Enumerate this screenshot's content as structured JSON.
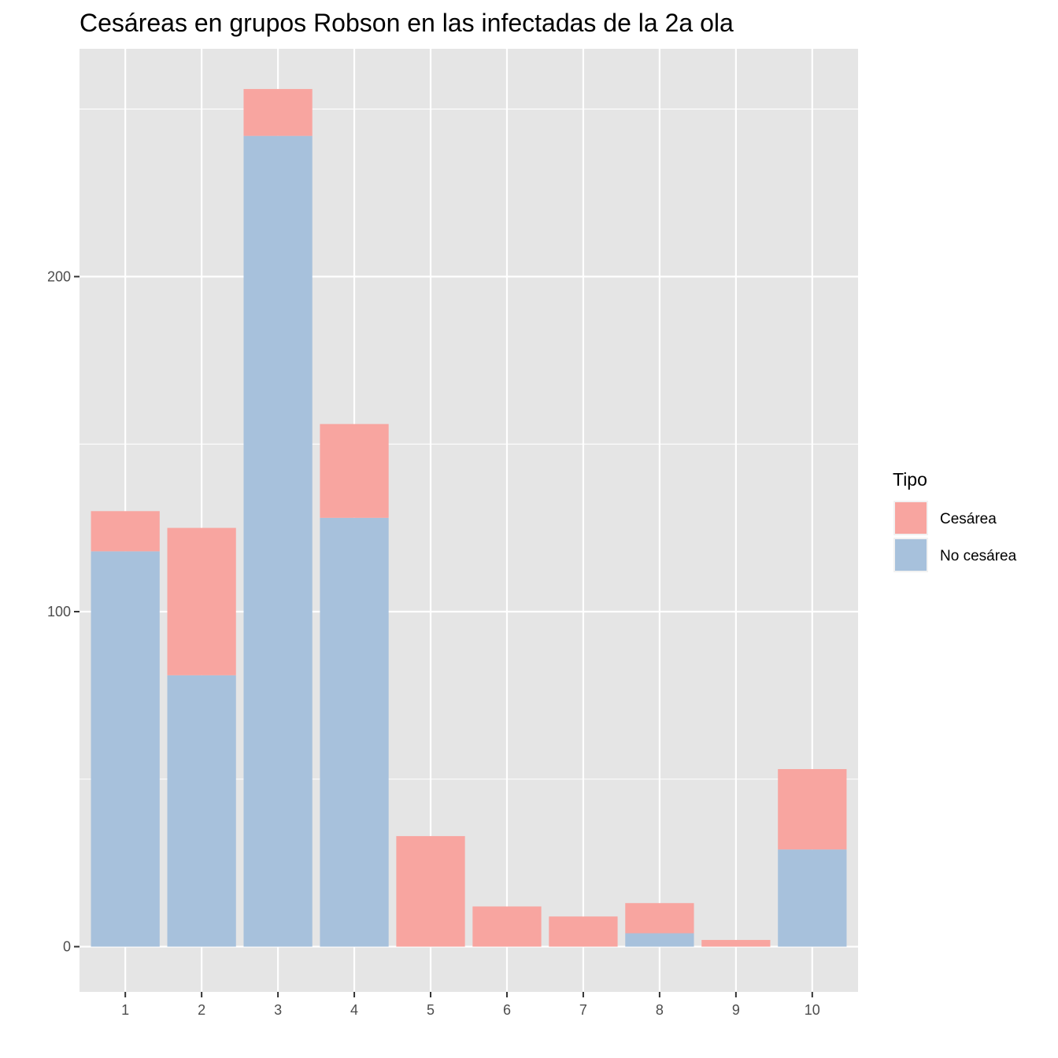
{
  "chart_data": {
    "type": "bar",
    "stacked": true,
    "title": "Cesáreas en grupos Robson en las infectadas de la 2a ola",
    "xlabel": "",
    "ylabel": "",
    "categories": [
      "1",
      "2",
      "3",
      "4",
      "5",
      "6",
      "7",
      "8",
      "9",
      "10"
    ],
    "series": [
      {
        "name": "No cesárea",
        "color": "#a7c1dc",
        "values": [
          118,
          81,
          242,
          128,
          0,
          0,
          0,
          4,
          0,
          29
        ]
      },
      {
        "name": "Cesárea",
        "color": "#f8a5a0",
        "values": [
          12,
          44,
          14,
          28,
          33,
          12,
          9,
          9,
          2,
          24
        ]
      }
    ],
    "ylim": [
      -13.5,
      268
    ],
    "yticks": [
      0,
      100,
      200
    ],
    "yticks_minor": [
      50,
      150,
      250
    ],
    "grid": true,
    "legend": {
      "title": "Tipo",
      "placement": "right",
      "entries": [
        "Cesárea",
        "No cesárea"
      ]
    },
    "colors": {
      "panel": "#e5e5e5",
      "grid": "#ffffff",
      "tick": "#333333"
    }
  }
}
